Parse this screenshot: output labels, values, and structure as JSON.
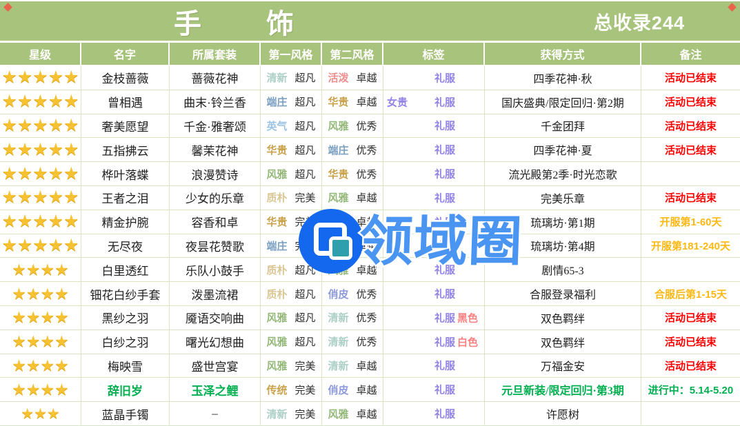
{
  "title": "手  饰",
  "total_label": "总收录244",
  "columns": [
    "星级",
    "名字",
    "所属套装",
    "第一风格",
    "第二风格",
    "标签",
    "获得方式",
    "备注"
  ],
  "watermark": {
    "text": "领域圈"
  },
  "palette": {
    "red": "#ff0000",
    "orange": "#fdb813",
    "green": "#00b050",
    "purple": "#9183e8",
    "coral": "#ff8080",
    "default": "#1f1f1f",
    "styles": {
      "清新": "#abcfc5",
      "活泼": "#ef8d8d",
      "端庄": "#7da1c4",
      "华贵": "#c9a24b",
      "英气": "#9cc3e5",
      "风雅": "#93b878",
      "质朴": "#d9c693",
      "俏皮": "#8e9bdb",
      "传统": "#c9a24b"
    }
  },
  "rows": [
    {
      "stars": 5,
      "name": "金枝蔷薇",
      "name_color": "default",
      "set": "蔷薇花神",
      "style1": {
        "label": "清新",
        "grade": "超凡"
      },
      "style2": {
        "label": "活泼",
        "grade": "卓越"
      },
      "tags": {
        "left": "",
        "center": "礼服",
        "right": ""
      },
      "tag_colors": {
        "left": "purple",
        "center": "purple",
        "right": "purple"
      },
      "obtain": "四季花神·秋",
      "obtain_color": "default",
      "note": "活动已结束",
      "note_color": "red"
    },
    {
      "stars": 5,
      "name": "曾相遇",
      "name_color": "default",
      "set": "曲末·铃兰香",
      "style1": {
        "label": "端庄",
        "grade": "超凡"
      },
      "style2": {
        "label": "华贵",
        "grade": "卓越"
      },
      "tags": {
        "left": "女贵",
        "center": "礼服",
        "right": ""
      },
      "tag_colors": {
        "left": "purple",
        "center": "purple",
        "right": "purple"
      },
      "obtain": "国庆盛典/限定回归·第2期",
      "obtain_color": "default",
      "note": "活动已结束",
      "note_color": "red"
    },
    {
      "stars": 5,
      "name": "奢美愿望",
      "name_color": "default",
      "set": "千金·雅奢颂",
      "style1": {
        "label": "英气",
        "grade": "超凡"
      },
      "style2": {
        "label": "风雅",
        "grade": "优秀"
      },
      "tags": {
        "left": "",
        "center": "礼服",
        "right": ""
      },
      "tag_colors": {
        "left": "purple",
        "center": "purple",
        "right": "purple"
      },
      "obtain": "千金团拜",
      "obtain_color": "default",
      "note": "活动已结束",
      "note_color": "red"
    },
    {
      "stars": 5,
      "name": "五指拂云",
      "name_color": "default",
      "set": "馨茉花神",
      "style1": {
        "label": "华贵",
        "grade": "超凡"
      },
      "style2": {
        "label": "端庄",
        "grade": "优秀"
      },
      "tags": {
        "left": "",
        "center": "礼服",
        "right": ""
      },
      "tag_colors": {
        "left": "purple",
        "center": "purple",
        "right": "purple"
      },
      "obtain": "四季花神·夏",
      "obtain_color": "default",
      "note": "活动已结束",
      "note_color": "red"
    },
    {
      "stars": 5,
      "name": "桦叶落蝶",
      "name_color": "default",
      "set": "浪漫赞诗",
      "style1": {
        "label": "风雅",
        "grade": "超凡"
      },
      "style2": {
        "label": "华贵",
        "grade": "优秀"
      },
      "tags": {
        "left": "",
        "center": "礼服",
        "right": ""
      },
      "tag_colors": {
        "left": "purple",
        "center": "purple",
        "right": "purple"
      },
      "obtain": "流光殿第2季·时光恋歌",
      "obtain_color": "default",
      "note": "",
      "note_color": "default"
    },
    {
      "stars": 5,
      "name": "王者之泪",
      "name_color": "default",
      "set": "少女的乐章",
      "style1": {
        "label": "质朴",
        "grade": "完美"
      },
      "style2": {
        "label": "风雅",
        "grade": "卓越"
      },
      "tags": {
        "left": "",
        "center": "礼服",
        "right": ""
      },
      "tag_colors": {
        "left": "purple",
        "center": "purple",
        "right": "purple"
      },
      "obtain": "完美乐章",
      "obtain_color": "default",
      "note": "活动已结束",
      "note_color": "red"
    },
    {
      "stars": 5,
      "name": "精金护腕",
      "name_color": "default",
      "set": "容香和卓",
      "style1": {
        "label": "华贵",
        "grade": "完美"
      },
      "style2": {
        "label": "英气",
        "grade": "卓越"
      },
      "tags": {
        "left": "",
        "center": "礼服",
        "right": ""
      },
      "tag_colors": {
        "left": "purple",
        "center": "purple",
        "right": "purple"
      },
      "obtain": "琉璃坊·第1期",
      "obtain_color": "default",
      "note": "开服第1-60天",
      "note_color": "orange"
    },
    {
      "stars": 5,
      "name": "无尽夜",
      "name_color": "default",
      "set": "夜昙花赞歌",
      "style1": {
        "label": "端庄",
        "grade": "完美"
      },
      "style2": {
        "label": "清新",
        "grade": "卓越"
      },
      "tags": {
        "left": "",
        "center": "礼服",
        "right": ""
      },
      "tag_colors": {
        "left": "purple",
        "center": "purple",
        "right": "purple"
      },
      "obtain": "琉璃坊·第4期",
      "obtain_color": "default",
      "note": "开服第181-240天",
      "note_color": "orange"
    },
    {
      "stars": 4,
      "name": "白里透红",
      "name_color": "default",
      "set": "乐队小鼓手",
      "style1": {
        "label": "质朴",
        "grade": "超凡"
      },
      "style2": {
        "label": "风雅",
        "grade": "卓越"
      },
      "tags": {
        "left": "",
        "center": "礼服",
        "right": ""
      },
      "tag_colors": {
        "left": "purple",
        "center": "purple",
        "right": "purple"
      },
      "obtain": "剧情65-3",
      "obtain_color": "default",
      "note": "",
      "note_color": "default"
    },
    {
      "stars": 4,
      "name": "钿花白纱手套",
      "name_color": "default",
      "set": "泼墨流裙",
      "style1": {
        "label": "质朴",
        "grade": "超凡"
      },
      "style2": {
        "label": "俏皮",
        "grade": "优秀"
      },
      "tags": {
        "left": "",
        "center": "礼服",
        "right": ""
      },
      "tag_colors": {
        "left": "purple",
        "center": "purple",
        "right": "purple"
      },
      "obtain": "合服登录福利",
      "obtain_color": "default",
      "note": "合服后第1-15天",
      "note_color": "orange"
    },
    {
      "stars": 4,
      "name": "黑纱之羽",
      "name_color": "default",
      "set": "魇语交响曲",
      "style1": {
        "label": "风雅",
        "grade": "超凡"
      },
      "style2": {
        "label": "清新",
        "grade": "优秀"
      },
      "tags": {
        "left": "",
        "center": "礼服",
        "right": "黑色"
      },
      "tag_colors": {
        "left": "purple",
        "center": "purple",
        "right": "coral"
      },
      "obtain": "双色羁绊",
      "obtain_color": "default",
      "note": "活动已结束",
      "note_color": "red"
    },
    {
      "stars": 4,
      "name": "白纱之羽",
      "name_color": "default",
      "set": "曙光幻想曲",
      "style1": {
        "label": "风雅",
        "grade": "超凡"
      },
      "style2": {
        "label": "清新",
        "grade": "优秀"
      },
      "tags": {
        "left": "",
        "center": "礼服",
        "right": "白色"
      },
      "tag_colors": {
        "left": "purple",
        "center": "purple",
        "right": "coral"
      },
      "obtain": "双色羁绊",
      "obtain_color": "default",
      "note": "活动已结束",
      "note_color": "red"
    },
    {
      "stars": 4,
      "name": "梅映雪",
      "name_color": "default",
      "set": "盛世宫宴",
      "style1": {
        "label": "风雅",
        "grade": "完美"
      },
      "style2": {
        "label": "清新",
        "grade": "卓越"
      },
      "tags": {
        "left": "",
        "center": "礼服",
        "right": ""
      },
      "tag_colors": {
        "left": "purple",
        "center": "purple",
        "right": "purple"
      },
      "obtain": "万福金安",
      "obtain_color": "default",
      "note": "活动已结束",
      "note_color": "red"
    },
    {
      "stars": 4,
      "name": "辞旧岁",
      "name_color": "green",
      "set": "玉泽之鲤",
      "style1": {
        "label": "传统",
        "grade": "完美"
      },
      "style2": {
        "label": "俏皮",
        "grade": "卓越"
      },
      "tags": {
        "left": "",
        "center": "礼服",
        "right": ""
      },
      "tag_colors": {
        "left": "purple",
        "center": "purple",
        "right": "purple"
      },
      "obtain": "元旦新装/限定回归·第3期",
      "obtain_color": "green",
      "note": "进行中：5.14-5.20",
      "note_color": "green"
    },
    {
      "stars": 3,
      "name": "蓝晶手镯",
      "name_color": "default",
      "set": "–",
      "style1": {
        "label": "清新",
        "grade": "完美"
      },
      "style2": {
        "label": "风雅",
        "grade": "卓越"
      },
      "tags": {
        "left": "",
        "center": "礼服",
        "right": ""
      },
      "tag_colors": {
        "left": "purple",
        "center": "purple",
        "right": "purple"
      },
      "obtain": "许愿树",
      "obtain_color": "default",
      "note": "",
      "note_color": "default"
    }
  ]
}
